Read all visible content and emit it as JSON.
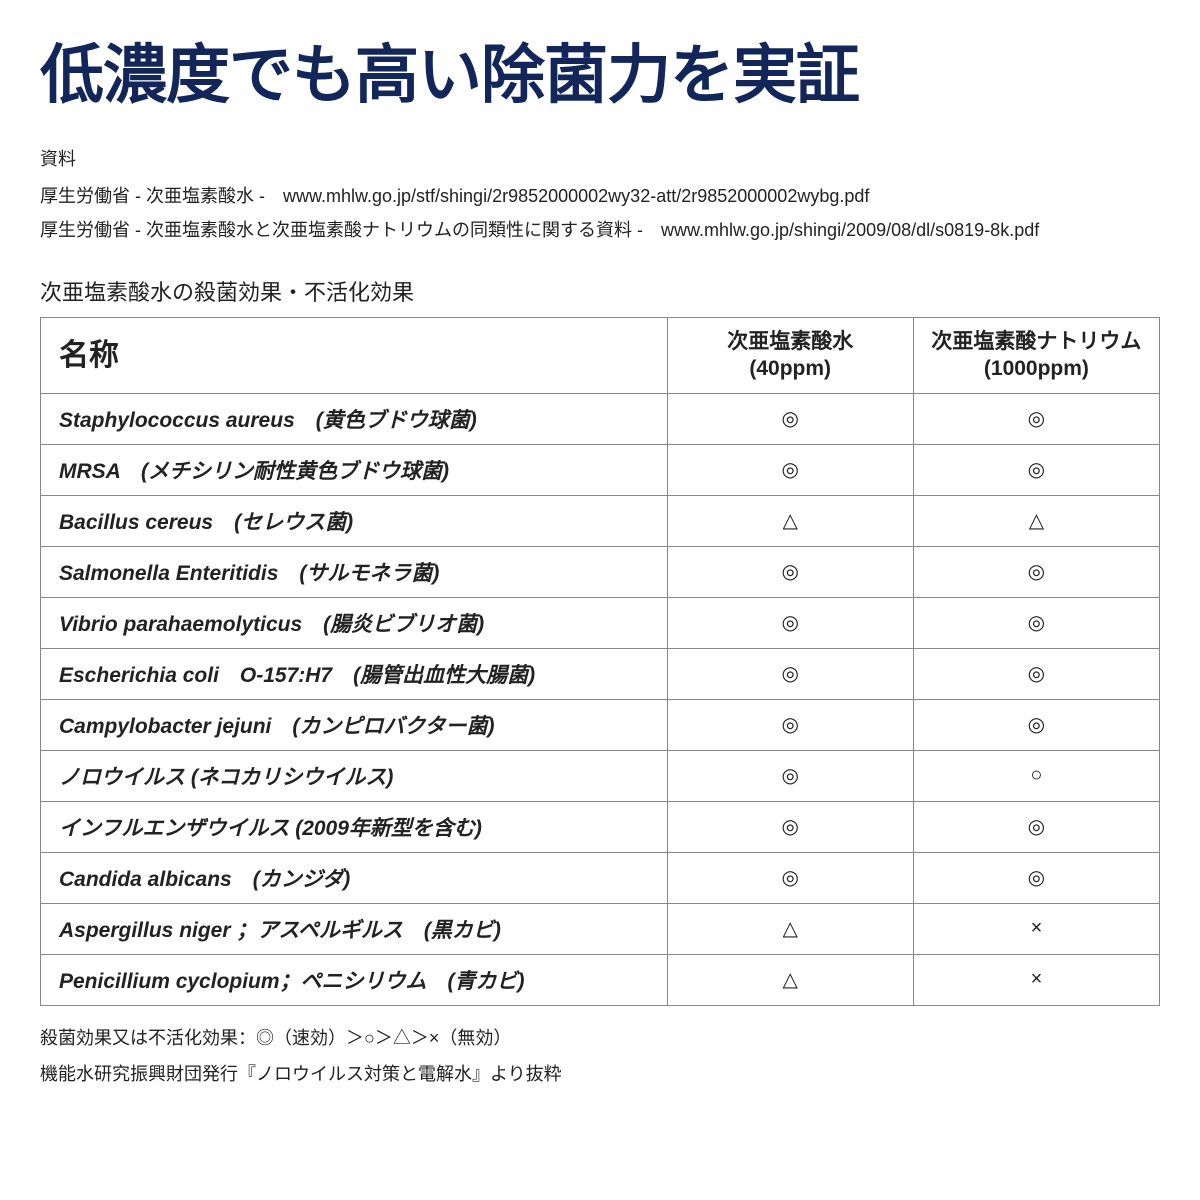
{
  "title": "低濃度でも高い除菌力を実証",
  "references": {
    "label": "資料",
    "line1": "厚生労働省 - 次亜塩素酸水 -　www.mhlw.go.jp/stf/shingi/2r9852000002wy32-att/2r9852000002wybg.pdf",
    "line2": "厚生労働省 - 次亜塩素酸水と次亜塩素酸ナトリウムの同類性に関する資料 -　www.mhlw.go.jp/shingi/2009/08/dl/s0819-8k.pdf"
  },
  "subheading": "次亜塩素酸水の殺菌効果・不活化効果",
  "table": {
    "headers": {
      "name": "名称",
      "col1_line1": "次亜塩素酸水",
      "col1_line2": "(40ppm)",
      "col2_line1": "次亜塩素酸ナトリウム",
      "col2_line2": "(1000ppm)"
    },
    "rows": [
      {
        "name": "Staphylococcus aureus　(黄色ブドウ球菌)",
        "v1": "◎",
        "v2": "◎"
      },
      {
        "name": "MRSA　(メチシリン耐性黄色ブドウ球菌)",
        "v1": "◎",
        "v2": "◎"
      },
      {
        "name": "Bacillus cereus　(セレウス菌)",
        "v1": "△",
        "v2": "△"
      },
      {
        "name": "Salmonella Enteritidis　(サルモネラ菌)",
        "v1": "◎",
        "v2": "◎"
      },
      {
        "name": "Vibrio parahaemolyticus　(腸炎ビブリオ菌)",
        "v1": "◎",
        "v2": "◎"
      },
      {
        "name": "Escherichia coli　O-157:H7　(腸管出血性大腸菌)",
        "v1": "◎",
        "v2": "◎"
      },
      {
        "name": "Campylobacter jejuni　(カンピロバクター菌)",
        "v1": "◎",
        "v2": "◎"
      },
      {
        "name": "ノロウイルス (ネコカリシウイルス)",
        "v1": "◎",
        "v2": "○"
      },
      {
        "name": "インフルエンザウイルス (2009年新型を含む)",
        "v1": "◎",
        "v2": "◎"
      },
      {
        "name": "Candida albicans　(カンジダ)",
        "v1": "◎",
        "v2": "◎"
      },
      {
        "name": "Aspergillus niger ；アスペルギルス　(黒カビ)",
        "v1": "△",
        "v2": "×"
      },
      {
        "name": "Penicillium cyclopium；ペニシリウム　(青カビ)",
        "v1": "△",
        "v2": "×"
      }
    ]
  },
  "notes": {
    "line1": "殺菌効果又は不活化効果：◎（速効）＞○＞△＞×（無効）",
    "line2": "機能水研究振興財団発行『ノロウイルス対策と電解水』より抜粋"
  },
  "style": {
    "title_color": "#12265a",
    "border_color": "#888888",
    "background_color": "#ffffff",
    "title_fontsize": 64,
    "body_fontsize": 21
  }
}
